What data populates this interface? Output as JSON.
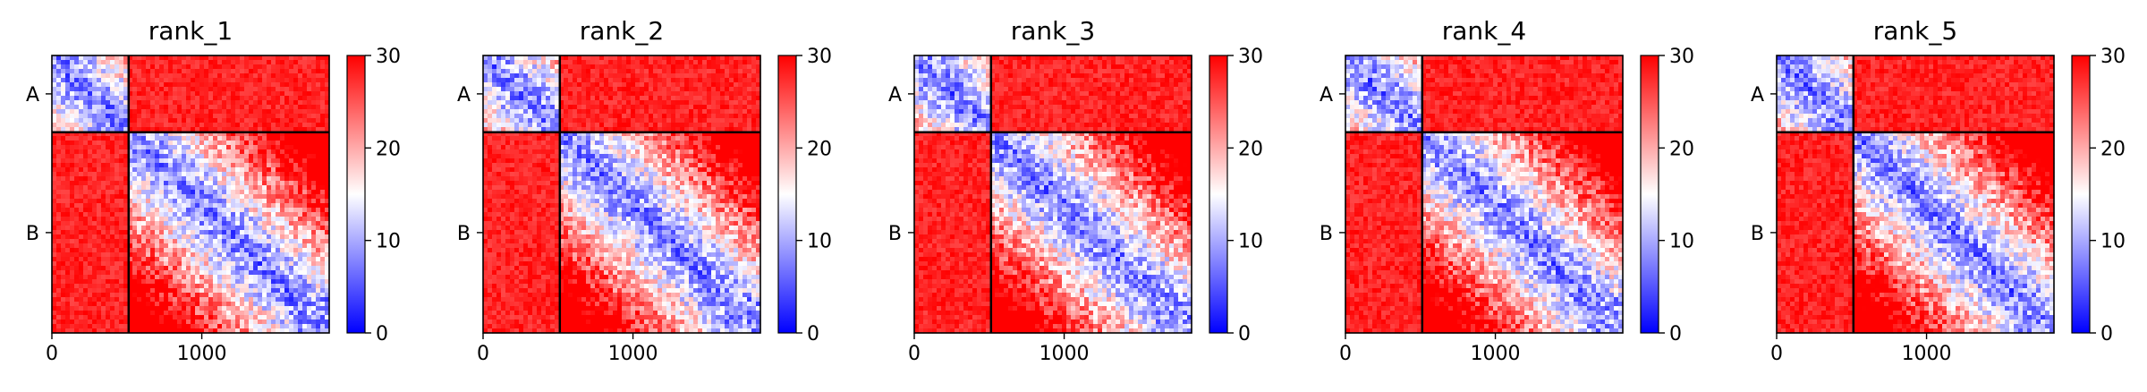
{
  "chart_data": [
    {
      "type": "heatmap",
      "title": "rank_1",
      "xticks": [
        0,
        1000
      ],
      "xlim": [
        0,
        1850
      ],
      "chain_boundary": 512,
      "chain_labels": [
        "A",
        "B"
      ],
      "colorbar": {
        "ticks": [
          0,
          10,
          20,
          30
        ],
        "range": [
          0,
          30
        ],
        "colormap": "bwr"
      },
      "grid": false
    },
    {
      "type": "heatmap",
      "title": "rank_2",
      "xticks": [
        0,
        1000
      ],
      "xlim": [
        0,
        1850
      ],
      "chain_boundary": 512,
      "chain_labels": [
        "A",
        "B"
      ],
      "colorbar": {
        "ticks": [
          0,
          10,
          20,
          30
        ],
        "range": [
          0,
          30
        ],
        "colormap": "bwr"
      },
      "grid": false
    },
    {
      "type": "heatmap",
      "title": "rank_3",
      "xticks": [
        0,
        1000
      ],
      "xlim": [
        0,
        1850
      ],
      "chain_boundary": 512,
      "chain_labels": [
        "A",
        "B"
      ],
      "colorbar": {
        "ticks": [
          0,
          10,
          20,
          30
        ],
        "range": [
          0,
          30
        ],
        "colormap": "bwr"
      },
      "grid": false
    },
    {
      "type": "heatmap",
      "title": "rank_4",
      "xticks": [
        0,
        1000
      ],
      "xlim": [
        0,
        1850
      ],
      "chain_boundary": 512,
      "chain_labels": [
        "A",
        "B"
      ],
      "colorbar": {
        "ticks": [
          0,
          10,
          20,
          30
        ],
        "range": [
          0,
          30
        ],
        "colormap": "bwr"
      },
      "grid": false
    },
    {
      "type": "heatmap",
      "title": "rank_5",
      "xticks": [
        0,
        1000
      ],
      "xlim": [
        0,
        1850
      ],
      "chain_boundary": 512,
      "chain_labels": [
        "A",
        "B"
      ],
      "colorbar": {
        "ticks": [
          0,
          10,
          20,
          30
        ],
        "range": [
          0,
          30
        ],
        "colormap": "bwr"
      },
      "grid": false
    }
  ],
  "colors": {
    "low": "#0000ff",
    "mid": "#ffffff",
    "high": "#ff0000",
    "axis": "#000000"
  }
}
